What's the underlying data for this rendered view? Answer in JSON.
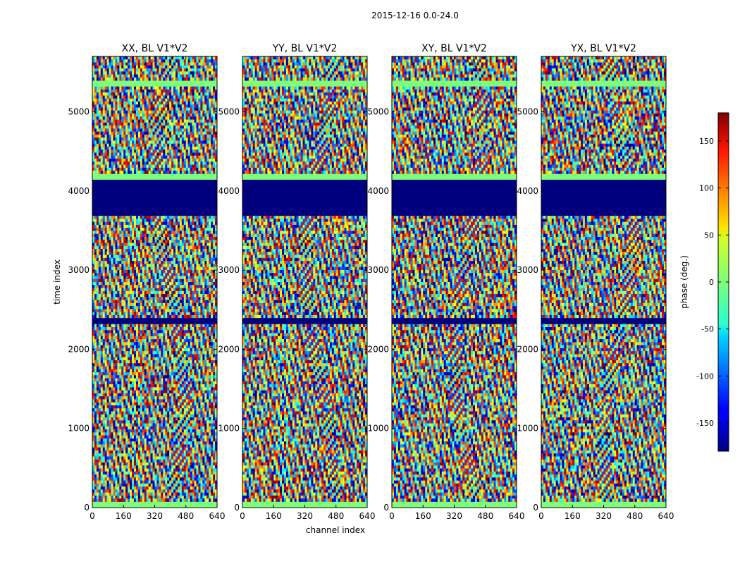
{
  "figure_title": "2015-12-16 0.0-24.0",
  "chart_data": {
    "type": "heatmap",
    "title": "2015-12-16 0.0-24.0",
    "xlabel": "channel index",
    "ylabel": "time index",
    "xlim": [
      0,
      640
    ],
    "ylim": [
      0,
      5700
    ],
    "xticks": [
      0,
      160,
      320,
      480,
      640
    ],
    "yticks": [
      0,
      1000,
      2000,
      3000,
      4000,
      5000
    ],
    "panels": [
      {
        "title": "XX, BL V1*V2",
        "polarization": "XX"
      },
      {
        "title": "YY, BL V1*V2",
        "polarization": "YY"
      },
      {
        "title": "XY, BL V1*V2",
        "polarization": "XY"
      },
      {
        "title": "YX, BL V1*V2",
        "polarization": "YX"
      }
    ],
    "flagged_time_ranges": [
      [
        3680,
        4150
      ],
      [
        2300,
        2380
      ]
    ],
    "colorbar": {
      "label": "phase (deg.)",
      "range": [
        -180,
        180
      ],
      "ticks": [
        -150,
        -100,
        -50,
        0,
        50,
        100,
        150
      ],
      "colormap": "jet"
    }
  }
}
